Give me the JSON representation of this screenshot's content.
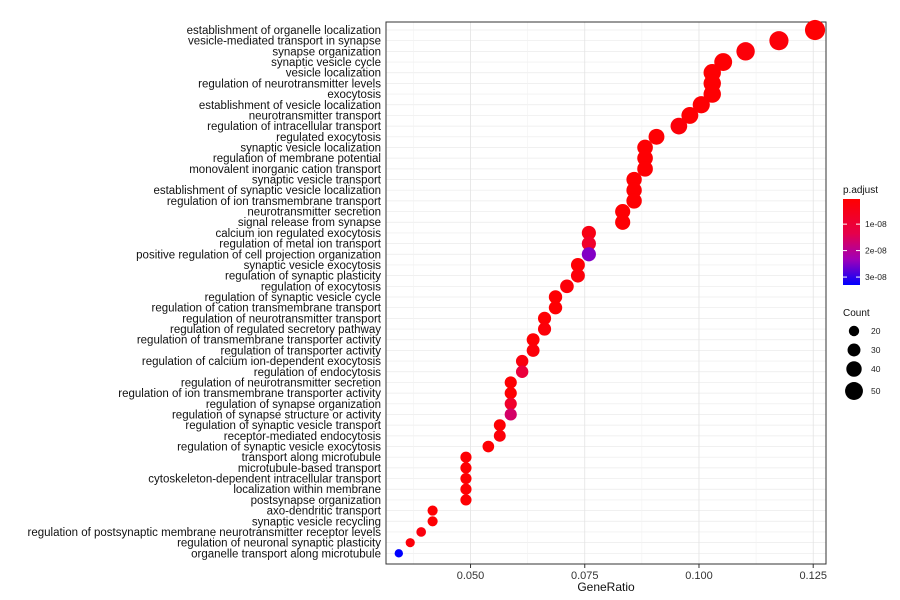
{
  "chart_data": {
    "type": "scatter",
    "xlabel": "GeneRatio",
    "ylabel": "",
    "xlim": [
      0.0315,
      0.1278
    ],
    "xticks": [
      0.05,
      0.075,
      0.1,
      0.125
    ],
    "xtick_labels": [
      "0.050",
      "0.075",
      "0.100",
      "0.125"
    ],
    "grid": true,
    "legend_position": "right",
    "color_legend": {
      "title": "p.adjust",
      "ticks": [
        1e-08,
        2e-08,
        3e-08
      ],
      "tick_labels": [
        "1e-08",
        "2e-08",
        "3e-08"
      ],
      "range": [
        5e-10,
        3.3e-08
      ],
      "low_color": "#ff0000",
      "high_color": "#0000ff"
    },
    "size_legend": {
      "title": "Count",
      "values": [
        20,
        30,
        40,
        50
      ],
      "labels": [
        "20",
        "30",
        "40",
        "50"
      ]
    },
    "points": [
      {
        "term": "establishment of organelle localization",
        "gene_ratio": 0.1254,
        "count": 59,
        "p_adjust": 1e-09
      },
      {
        "term": "vesicle-mediated transport in synapse",
        "gene_ratio": 0.1175,
        "count": 55,
        "p_adjust": 2e-09
      },
      {
        "term": "synapse organization",
        "gene_ratio": 0.1102,
        "count": 52,
        "p_adjust": 2e-09
      },
      {
        "term": "synaptic vesicle cycle",
        "gene_ratio": 0.1053,
        "count": 50,
        "p_adjust": 1e-09
      },
      {
        "term": "vesicle localization",
        "gene_ratio": 0.1029,
        "count": 48,
        "p_adjust": 1e-09
      },
      {
        "term": "regulation of neurotransmitter levels",
        "gene_ratio": 0.1029,
        "count": 48,
        "p_adjust": 1e-09
      },
      {
        "term": "exocytosis",
        "gene_ratio": 0.1029,
        "count": 48,
        "p_adjust": 1e-09
      },
      {
        "term": "establishment of vesicle localization",
        "gene_ratio": 0.1005,
        "count": 47,
        "p_adjust": 1e-09
      },
      {
        "term": "neurotransmitter transport",
        "gene_ratio": 0.098,
        "count": 46,
        "p_adjust": 1e-09
      },
      {
        "term": "regulation of intracellular transport",
        "gene_ratio": 0.0956,
        "count": 45,
        "p_adjust": 2e-09
      },
      {
        "term": "regulated exocytosis",
        "gene_ratio": 0.0907,
        "count": 42,
        "p_adjust": 1e-09
      },
      {
        "term": "synaptic vesicle localization",
        "gene_ratio": 0.0882,
        "count": 41,
        "p_adjust": 1e-09
      },
      {
        "term": "regulation of membrane potential",
        "gene_ratio": 0.0882,
        "count": 41,
        "p_adjust": 1e-09
      },
      {
        "term": "monovalent inorganic cation transport",
        "gene_ratio": 0.0882,
        "count": 41,
        "p_adjust": 1e-09
      },
      {
        "term": "synaptic vesicle transport",
        "gene_ratio": 0.0858,
        "count": 40,
        "p_adjust": 1e-09
      },
      {
        "term": "establishment of synaptic vesicle localization",
        "gene_ratio": 0.0858,
        "count": 40,
        "p_adjust": 1e-09
      },
      {
        "term": "regulation of ion transmembrane transport",
        "gene_ratio": 0.0858,
        "count": 40,
        "p_adjust": 1e-09
      },
      {
        "term": "neurotransmitter secretion",
        "gene_ratio": 0.0833,
        "count": 39,
        "p_adjust": 1e-09
      },
      {
        "term": "signal release from synapse",
        "gene_ratio": 0.0833,
        "count": 39,
        "p_adjust": 1e-09
      },
      {
        "term": "calcium ion regulated exocytosis",
        "gene_ratio": 0.0759,
        "count": 35,
        "p_adjust": 4e-09
      },
      {
        "term": "regulation of metal ion transport",
        "gene_ratio": 0.0759,
        "count": 35,
        "p_adjust": 8e-09
      },
      {
        "term": "positive regulation of cell projection organization",
        "gene_ratio": 0.0759,
        "count": 35,
        "p_adjust": 2.5e-08
      },
      {
        "term": "synaptic vesicle exocytosis",
        "gene_ratio": 0.0735,
        "count": 34,
        "p_adjust": 1e-09
      },
      {
        "term": "regulation of synaptic plasticity",
        "gene_ratio": 0.0735,
        "count": 34,
        "p_adjust": 2e-09
      },
      {
        "term": "regulation of exocytosis",
        "gene_ratio": 0.0711,
        "count": 33,
        "p_adjust": 2e-09
      },
      {
        "term": "regulation of synaptic vesicle cycle",
        "gene_ratio": 0.0686,
        "count": 32,
        "p_adjust": 1e-09
      },
      {
        "term": "regulation of cation transmembrane transport",
        "gene_ratio": 0.0686,
        "count": 32,
        "p_adjust": 1e-09
      },
      {
        "term": "regulation of neurotransmitter transport",
        "gene_ratio": 0.0662,
        "count": 31,
        "p_adjust": 1e-09
      },
      {
        "term": "regulation of regulated secretory pathway",
        "gene_ratio": 0.0662,
        "count": 31,
        "p_adjust": 2e-09
      },
      {
        "term": "regulation of transmembrane transporter activity",
        "gene_ratio": 0.0637,
        "count": 30,
        "p_adjust": 1e-09
      },
      {
        "term": "regulation of transporter activity",
        "gene_ratio": 0.0637,
        "count": 30,
        "p_adjust": 2e-09
      },
      {
        "term": "regulation of calcium ion-dependent exocytosis",
        "gene_ratio": 0.0613,
        "count": 28,
        "p_adjust": 3e-09
      },
      {
        "term": "regulation of endocytosis",
        "gene_ratio": 0.0613,
        "count": 28,
        "p_adjust": 1.1e-08
      },
      {
        "term": "regulation of neurotransmitter secretion",
        "gene_ratio": 0.0588,
        "count": 27,
        "p_adjust": 1e-09
      },
      {
        "term": "regulation of ion transmembrane transporter activity",
        "gene_ratio": 0.0588,
        "count": 27,
        "p_adjust": 1e-09
      },
      {
        "term": "regulation of synapse organization",
        "gene_ratio": 0.0588,
        "count": 27,
        "p_adjust": 8e-09
      },
      {
        "term": "regulation of synapse structure or activity",
        "gene_ratio": 0.0588,
        "count": 27,
        "p_adjust": 1.6e-08
      },
      {
        "term": "regulation of synaptic vesicle transport",
        "gene_ratio": 0.0564,
        "count": 26,
        "p_adjust": 1e-09
      },
      {
        "term": "receptor-mediated endocytosis",
        "gene_ratio": 0.0564,
        "count": 26,
        "p_adjust": 2e-09
      },
      {
        "term": "regulation of synaptic vesicle exocytosis",
        "gene_ratio": 0.0539,
        "count": 25,
        "p_adjust": 1e-09
      },
      {
        "term": "transport along microtubule",
        "gene_ratio": 0.049,
        "count": 23,
        "p_adjust": 1e-09
      },
      {
        "term": "microtubule-based transport",
        "gene_ratio": 0.049,
        "count": 23,
        "p_adjust": 1e-09
      },
      {
        "term": "cytoskeleton-dependent intracellular transport",
        "gene_ratio": 0.049,
        "count": 23,
        "p_adjust": 1e-09
      },
      {
        "term": "localization within membrane",
        "gene_ratio": 0.049,
        "count": 23,
        "p_adjust": 1e-09
      },
      {
        "term": "postsynapse organization",
        "gene_ratio": 0.049,
        "count": 23,
        "p_adjust": 1e-09
      },
      {
        "term": "axo-dendritic transport",
        "gene_ratio": 0.0417,
        "count": 19,
        "p_adjust": 1e-09
      },
      {
        "term": "synaptic vesicle recycling",
        "gene_ratio": 0.0417,
        "count": 19,
        "p_adjust": 1e-09
      },
      {
        "term": "regulation of postsynaptic membrane neurotransmitter receptor levels",
        "gene_ratio": 0.0392,
        "count": 17,
        "p_adjust": 3e-09
      },
      {
        "term": "regulation of neuronal synaptic plasticity",
        "gene_ratio": 0.0368,
        "count": 15,
        "p_adjust": 2e-09
      },
      {
        "term": "organelle transport along microtubule",
        "gene_ratio": 0.0343,
        "count": 12,
        "p_adjust": 3.3e-08
      }
    ]
  }
}
